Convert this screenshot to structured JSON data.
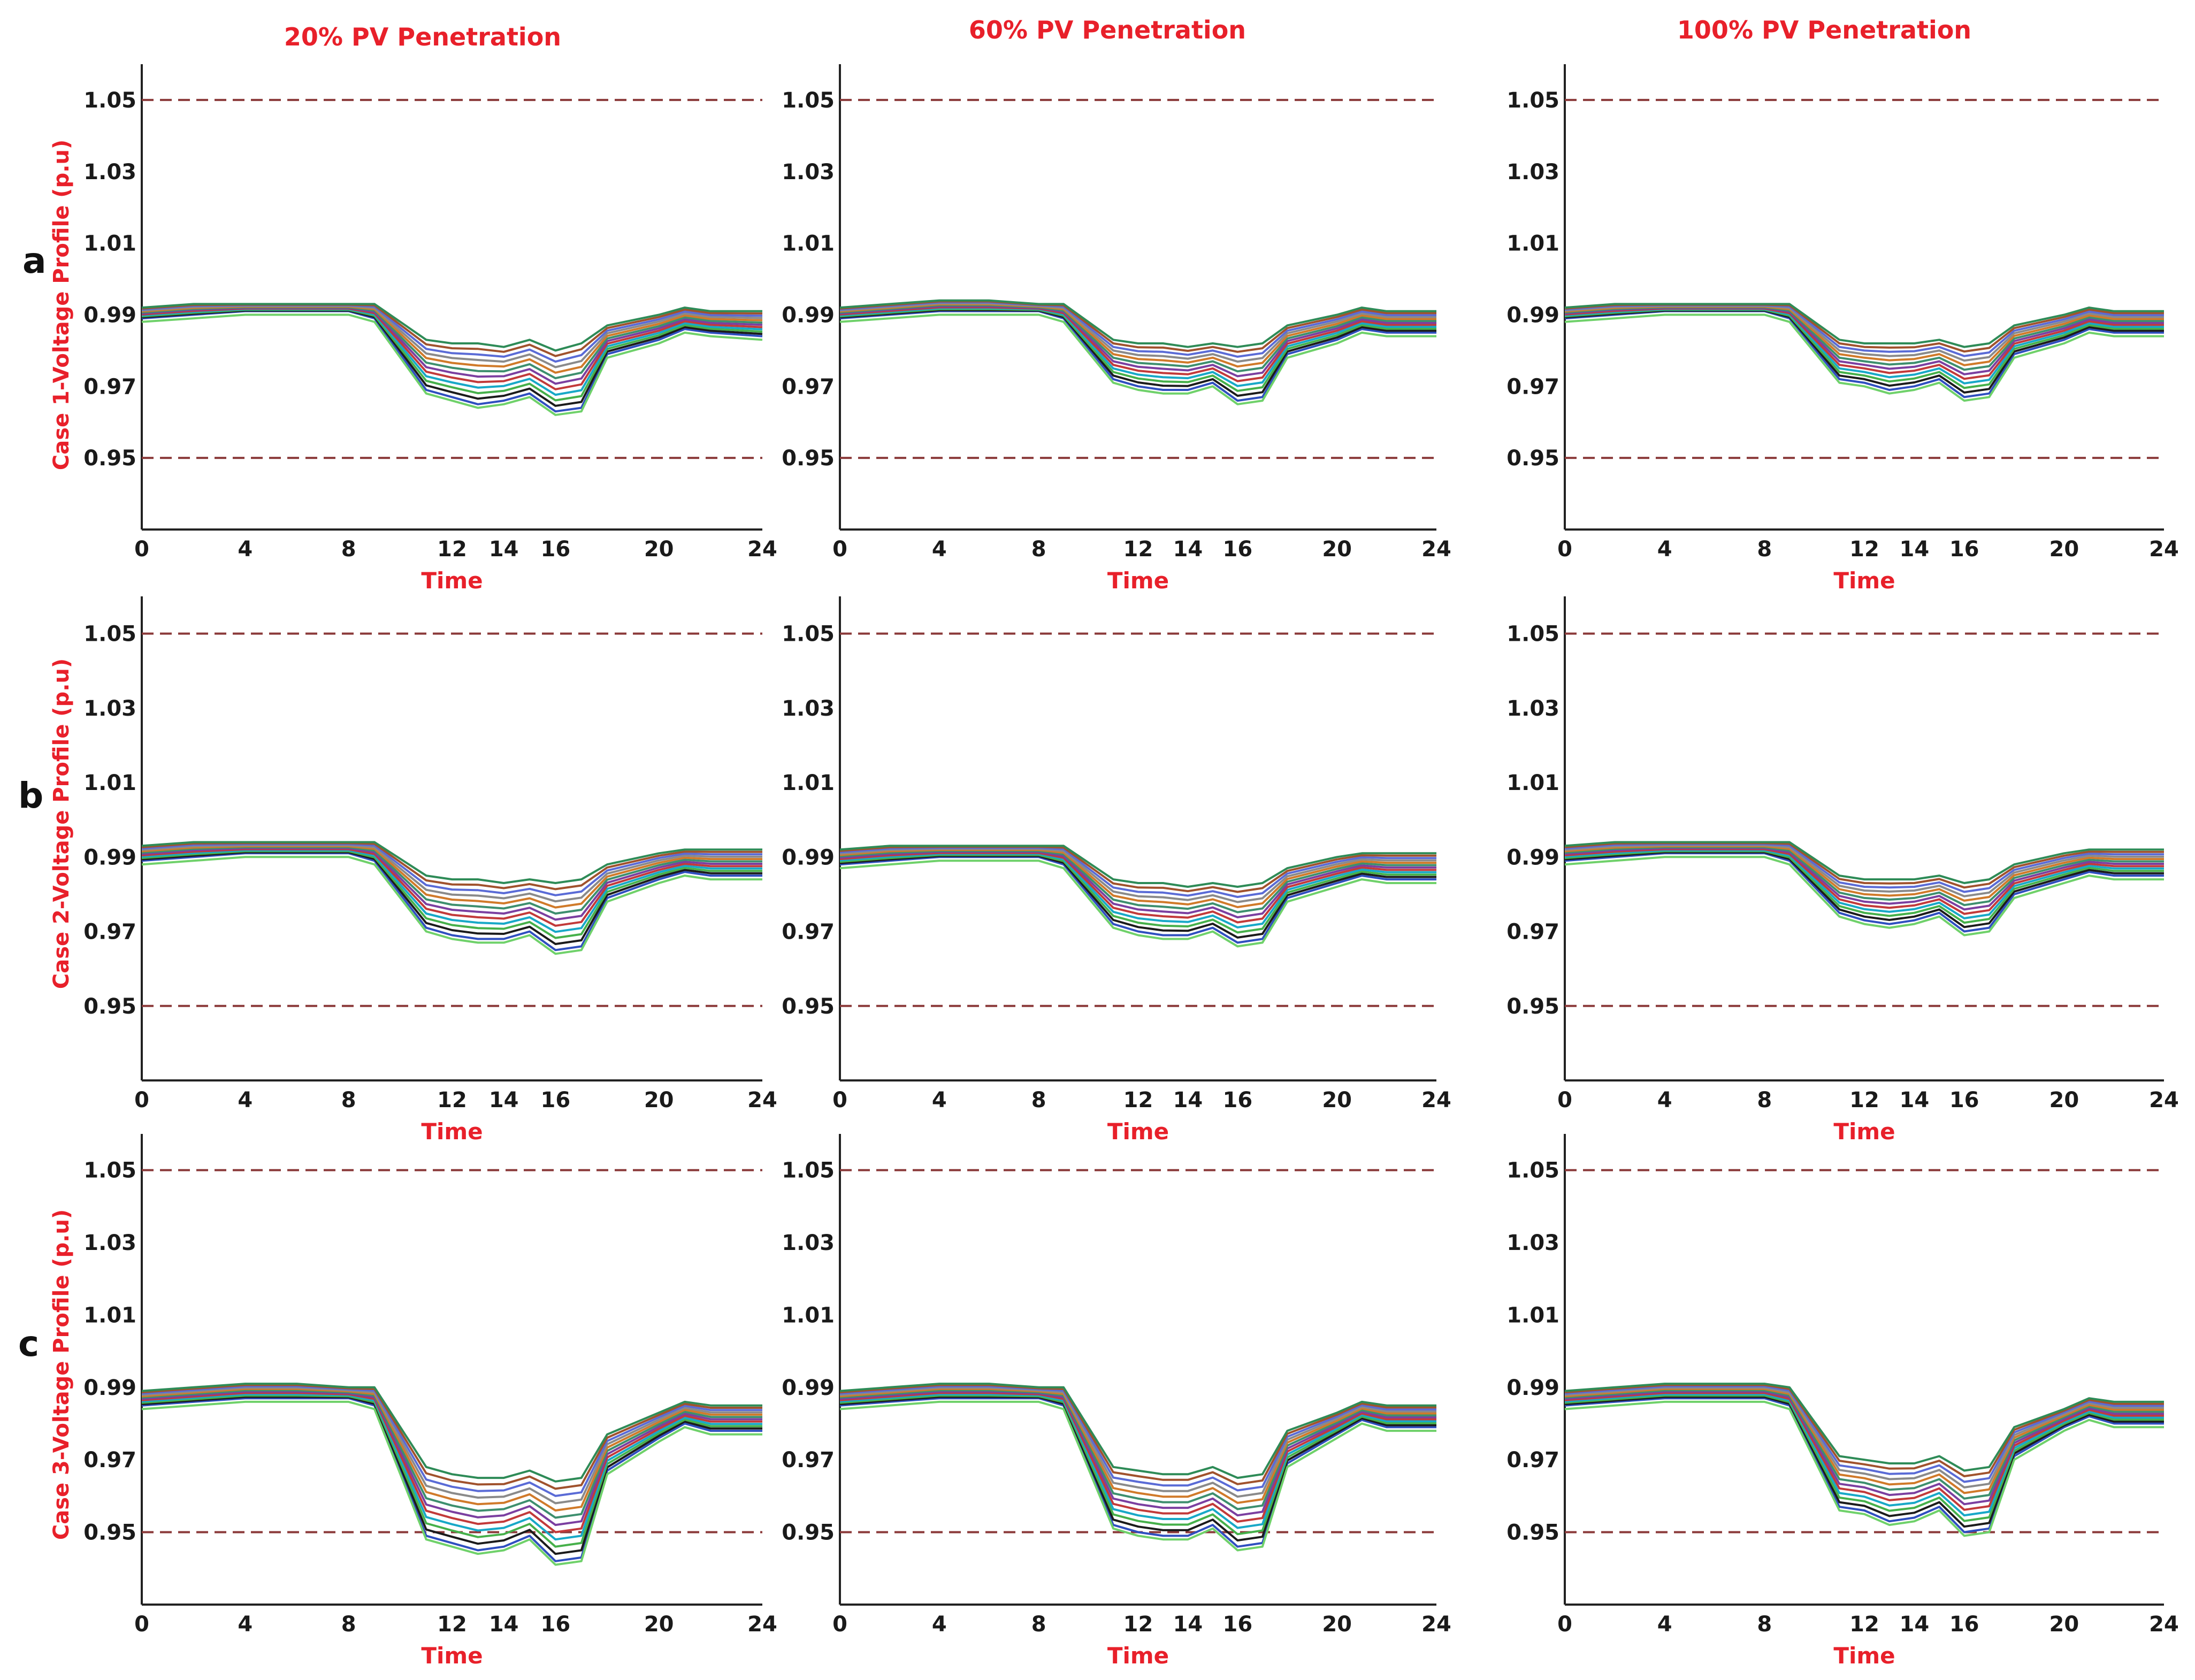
{
  "figure": {
    "col_titles": [
      "20% PV Penetration",
      "60% PV Penetration",
      "100% PV Penetration"
    ],
    "row_letters": [
      "a",
      "b",
      "c"
    ],
    "row_ylabels": [
      "Case 1-Voltage Profile (p.u)",
      "Case 2-Voltage Profile (p.u)",
      "Case 3-Voltage Profile (p.u)"
    ],
    "xlabel": "Time"
  },
  "colors": {
    "title": "#e8202a",
    "limit_line": "#8b3a3a",
    "palette": [
      "#2f4fbf",
      "#1b1b1b",
      "#46b04a",
      "#18a8c7",
      "#c23a3a",
      "#7b3fa0",
      "#3d8f6e",
      "#d07a2a",
      "#8a8a8a",
      "#5a6bd6",
      "#a0522d",
      "#2e8b57"
    ]
  },
  "chart_data": [
    {
      "type": "line",
      "case": "Case 1",
      "pv": "20% PV Penetration",
      "x": [
        0,
        2,
        4,
        6,
        8,
        9,
        11,
        12,
        13,
        14,
        15,
        16,
        17,
        18,
        20,
        21,
        22,
        24
      ],
      "ylim": [
        0.93,
        1.06
      ],
      "yticks": [
        0.95,
        0.97,
        0.99,
        1.01,
        1.03,
        1.05
      ],
      "ytick_labels": [
        "0.95",
        "0.97",
        "0.99",
        "1.01",
        "1.03",
        "1.05"
      ],
      "xticks": [
        0,
        4,
        8,
        12,
        14,
        16,
        20,
        24
      ],
      "limits": [
        0.95,
        1.05
      ],
      "band_upper": [
        0.992,
        0.993,
        0.993,
        0.993,
        0.993,
        0.993,
        0.983,
        0.982,
        0.982,
        0.981,
        0.983,
        0.98,
        0.982,
        0.987,
        0.99,
        0.992,
        0.991,
        0.991
      ],
      "band_lower": [
        0.989,
        0.99,
        0.991,
        0.991,
        0.991,
        0.989,
        0.969,
        0.967,
        0.965,
        0.966,
        0.968,
        0.963,
        0.964,
        0.979,
        0.983,
        0.986,
        0.985,
        0.984
      ],
      "n_series": 12
    },
    {
      "type": "line",
      "case": "Case 1",
      "pv": "60% PV Penetration",
      "x": [
        0,
        2,
        4,
        6,
        8,
        9,
        11,
        12,
        13,
        14,
        15,
        16,
        17,
        18,
        20,
        21,
        22,
        24
      ],
      "ylim": [
        0.93,
        1.06
      ],
      "yticks": [
        0.95,
        0.97,
        0.99,
        1.01,
        1.03,
        1.05
      ],
      "ytick_labels": [
        "0.95",
        "0.97",
        "0.99",
        "1.01",
        "1.03",
        "1.05"
      ],
      "xticks": [
        0,
        4,
        8,
        12,
        14,
        16,
        20,
        24
      ],
      "limits": [
        0.95,
        1.05
      ],
      "band_upper": [
        0.992,
        0.993,
        0.994,
        0.994,
        0.993,
        0.993,
        0.983,
        0.982,
        0.982,
        0.981,
        0.982,
        0.981,
        0.982,
        0.987,
        0.99,
        0.992,
        0.991,
        0.991
      ],
      "band_lower": [
        0.989,
        0.99,
        0.991,
        0.991,
        0.991,
        0.989,
        0.972,
        0.97,
        0.969,
        0.969,
        0.971,
        0.966,
        0.967,
        0.979,
        0.983,
        0.986,
        0.985,
        0.985
      ],
      "n_series": 12
    },
    {
      "type": "line",
      "case": "Case 1",
      "pv": "100% PV Penetration",
      "x": [
        0,
        2,
        4,
        6,
        8,
        9,
        11,
        12,
        13,
        14,
        15,
        16,
        17,
        18,
        20,
        21,
        22,
        24
      ],
      "ylim": [
        0.93,
        1.06
      ],
      "yticks": [
        0.95,
        0.97,
        0.99,
        1.01,
        1.03,
        1.05
      ],
      "ytick_labels": [
        "0.95",
        "0.97",
        "0.99",
        "1.01",
        "1.03",
        "1.05"
      ],
      "xticks": [
        0,
        4,
        8,
        12,
        14,
        16,
        20,
        24
      ],
      "limits": [
        0.95,
        1.05
      ],
      "band_upper": [
        0.992,
        0.993,
        0.993,
        0.993,
        0.993,
        0.993,
        0.983,
        0.982,
        0.982,
        0.982,
        0.983,
        0.981,
        0.982,
        0.987,
        0.99,
        0.992,
        0.991,
        0.991
      ],
      "band_lower": [
        0.989,
        0.99,
        0.991,
        0.991,
        0.991,
        0.989,
        0.972,
        0.971,
        0.969,
        0.97,
        0.972,
        0.967,
        0.968,
        0.979,
        0.983,
        0.986,
        0.985,
        0.985
      ],
      "n_series": 12
    },
    {
      "type": "line",
      "case": "Case 2",
      "pv": "20% PV Penetration",
      "x": [
        0,
        2,
        4,
        6,
        8,
        9,
        11,
        12,
        13,
        14,
        15,
        16,
        17,
        18,
        20,
        21,
        22,
        24
      ],
      "ylim": [
        0.93,
        1.06
      ],
      "yticks": [
        0.95,
        0.97,
        0.99,
        1.01,
        1.03,
        1.05
      ],
      "ytick_labels": [
        "0.95",
        "0.97",
        "0.99",
        "1.01",
        "1.03",
        "1.05"
      ],
      "xticks": [
        0,
        4,
        8,
        12,
        14,
        16,
        20,
        24
      ],
      "limits": [
        0.95,
        1.05
      ],
      "band_upper": [
        0.993,
        0.994,
        0.994,
        0.994,
        0.994,
        0.994,
        0.985,
        0.984,
        0.984,
        0.983,
        0.984,
        0.983,
        0.984,
        0.988,
        0.991,
        0.992,
        0.992,
        0.992
      ],
      "band_lower": [
        0.989,
        0.99,
        0.991,
        0.991,
        0.991,
        0.989,
        0.971,
        0.969,
        0.968,
        0.968,
        0.97,
        0.965,
        0.966,
        0.979,
        0.984,
        0.986,
        0.985,
        0.985
      ],
      "n_series": 12
    },
    {
      "type": "line",
      "case": "Case 2",
      "pv": "60% PV Penetration",
      "x": [
        0,
        2,
        4,
        6,
        8,
        9,
        11,
        12,
        13,
        14,
        15,
        16,
        17,
        18,
        20,
        21,
        22,
        24
      ],
      "ylim": [
        0.93,
        1.06
      ],
      "yticks": [
        0.95,
        0.97,
        0.99,
        1.01,
        1.03,
        1.05
      ],
      "ytick_labels": [
        "0.95",
        "0.97",
        "0.99",
        "1.01",
        "1.03",
        "1.05"
      ],
      "xticks": [
        0,
        4,
        8,
        12,
        14,
        16,
        20,
        24
      ],
      "limits": [
        0.95,
        1.05
      ],
      "band_upper": [
        0.992,
        0.993,
        0.993,
        0.993,
        0.993,
        0.993,
        0.984,
        0.983,
        0.983,
        0.982,
        0.983,
        0.982,
        0.983,
        0.987,
        0.99,
        0.991,
        0.991,
        0.991
      ],
      "band_lower": [
        0.988,
        0.989,
        0.99,
        0.99,
        0.99,
        0.988,
        0.972,
        0.97,
        0.969,
        0.969,
        0.971,
        0.967,
        0.968,
        0.979,
        0.983,
        0.985,
        0.984,
        0.984
      ],
      "n_series": 12
    },
    {
      "type": "line",
      "case": "Case 2",
      "pv": "100% PV Penetration",
      "x": [
        0,
        2,
        4,
        6,
        8,
        9,
        11,
        12,
        13,
        14,
        15,
        16,
        17,
        18,
        20,
        21,
        22,
        24
      ],
      "ylim": [
        0.93,
        1.06
      ],
      "yticks": [
        0.95,
        0.97,
        0.99,
        1.01,
        1.03,
        1.05
      ],
      "ytick_labels": [
        "0.95",
        "0.97",
        "0.99",
        "1.01",
        "1.03",
        "1.05"
      ],
      "xticks": [
        0,
        4,
        8,
        12,
        14,
        16,
        20,
        24
      ],
      "limits": [
        0.95,
        1.05
      ],
      "band_upper": [
        0.993,
        0.994,
        0.994,
        0.994,
        0.994,
        0.994,
        0.985,
        0.984,
        0.984,
        0.984,
        0.985,
        0.983,
        0.984,
        0.988,
        0.991,
        0.992,
        0.992,
        0.992
      ],
      "band_lower": [
        0.989,
        0.99,
        0.991,
        0.991,
        0.991,
        0.989,
        0.975,
        0.973,
        0.972,
        0.973,
        0.975,
        0.97,
        0.971,
        0.98,
        0.984,
        0.986,
        0.985,
        0.985
      ],
      "n_series": 12
    },
    {
      "type": "line",
      "case": "Case 3",
      "pv": "20% PV Penetration",
      "x": [
        0,
        2,
        4,
        6,
        8,
        9,
        11,
        12,
        13,
        14,
        15,
        16,
        17,
        18,
        20,
        21,
        22,
        24
      ],
      "ylim": [
        0.93,
        1.06
      ],
      "yticks": [
        0.95,
        0.97,
        0.99,
        1.01,
        1.03,
        1.05
      ],
      "ytick_labels": [
        "0.95",
        "0.97",
        "0.99",
        "1.01",
        "1.03",
        "1.05"
      ],
      "xticks": [
        0,
        4,
        8,
        12,
        14,
        16,
        20,
        24
      ],
      "limits": [
        0.95,
        1.05
      ],
      "band_upper": [
        0.989,
        0.99,
        0.991,
        0.991,
        0.99,
        0.99,
        0.968,
        0.966,
        0.965,
        0.965,
        0.967,
        0.964,
        0.965,
        0.977,
        0.983,
        0.986,
        0.985,
        0.985
      ],
      "band_lower": [
        0.985,
        0.986,
        0.987,
        0.987,
        0.987,
        0.985,
        0.949,
        0.947,
        0.945,
        0.946,
        0.949,
        0.942,
        0.943,
        0.967,
        0.976,
        0.98,
        0.978,
        0.978
      ],
      "n_series": 12
    },
    {
      "type": "line",
      "case": "Case 3",
      "pv": "60% PV Penetration",
      "x": [
        0,
        2,
        4,
        6,
        8,
        9,
        11,
        12,
        13,
        14,
        15,
        16,
        17,
        18,
        20,
        21,
        22,
        24
      ],
      "ylim": [
        0.93,
        1.06
      ],
      "yticks": [
        0.95,
        0.97,
        0.99,
        1.01,
        1.03,
        1.05
      ],
      "ytick_labels": [
        "0.95",
        "0.97",
        "0.99",
        "1.01",
        "1.03",
        "1.05"
      ],
      "xticks": [
        0,
        4,
        8,
        12,
        14,
        16,
        20,
        24
      ],
      "limits": [
        0.95,
        1.05
      ],
      "band_upper": [
        0.989,
        0.99,
        0.991,
        0.991,
        0.99,
        0.99,
        0.968,
        0.967,
        0.966,
        0.966,
        0.968,
        0.965,
        0.966,
        0.978,
        0.983,
        0.986,
        0.985,
        0.985
      ],
      "band_lower": [
        0.985,
        0.986,
        0.987,
        0.987,
        0.987,
        0.985,
        0.952,
        0.95,
        0.949,
        0.949,
        0.952,
        0.946,
        0.947,
        0.969,
        0.977,
        0.981,
        0.979,
        0.979
      ],
      "n_series": 12
    },
    {
      "type": "line",
      "case": "Case 3",
      "pv": "100% PV Penetration",
      "x": [
        0,
        2,
        4,
        6,
        8,
        9,
        11,
        12,
        13,
        14,
        15,
        16,
        17,
        18,
        20,
        21,
        22,
        24
      ],
      "ylim": [
        0.93,
        1.06
      ],
      "yticks": [
        0.95,
        0.97,
        0.99,
        1.01,
        1.03,
        1.05
      ],
      "ytick_labels": [
        "0.95",
        "0.97",
        "0.99",
        "1.01",
        "1.03",
        "1.05"
      ],
      "xticks": [
        0,
        4,
        8,
        12,
        14,
        16,
        20,
        24
      ],
      "limits": [
        0.95,
        1.05
      ],
      "band_upper": [
        0.989,
        0.99,
        0.991,
        0.991,
        0.991,
        0.99,
        0.971,
        0.97,
        0.969,
        0.969,
        0.971,
        0.967,
        0.968,
        0.979,
        0.984,
        0.987,
        0.986,
        0.986
      ],
      "band_lower": [
        0.985,
        0.986,
        0.987,
        0.987,
        0.987,
        0.985,
        0.957,
        0.956,
        0.953,
        0.954,
        0.957,
        0.95,
        0.951,
        0.971,
        0.979,
        0.982,
        0.98,
        0.98
      ],
      "n_series": 12
    }
  ]
}
